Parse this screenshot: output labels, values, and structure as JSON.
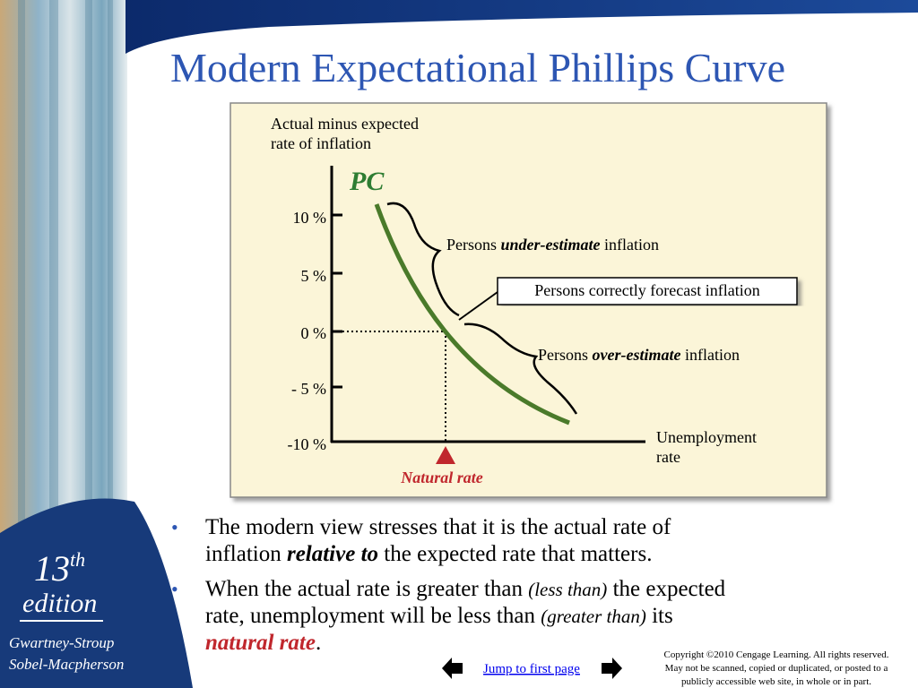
{
  "title": "Modern Expectational Phillips Curve",
  "chart": {
    "y_axis_label": [
      "Actual minus expected",
      "rate of inflation"
    ],
    "curve_label": "PC",
    "y_ticks": [
      "10 %",
      "5 %",
      "0 %",
      "- 5 %",
      "-10 %"
    ],
    "x_axis_label": [
      "Unemployment",
      "rate"
    ],
    "natural_rate": "Natural rate",
    "under_estimate": [
      "Persons ",
      "under-estimate",
      " inflation"
    ],
    "correct_forecast": "Persons correctly forecast inflation",
    "over_estimate": [
      "Persons ",
      "over-estimate",
      " inflation"
    ]
  },
  "bullets": [
    [
      [
        "The modern view stresses that it is the actual rate of"
      ],
      [
        "inflation ",
        "relative to",
        " the expected rate that matters."
      ]
    ],
    [
      [
        "When the actual rate is greater than ",
        "(less than)",
        " the expected"
      ],
      [
        "rate, unemployment will be less than ",
        "(greater than)",
        " its"
      ],
      [
        "natural rate",
        "."
      ]
    ]
  ],
  "sidebar": {
    "edition_number": "13",
    "edition_suffix": "th",
    "edition": "edition",
    "authors": [
      "Gwartney-Stroup",
      "Sobel-Macpherson"
    ]
  },
  "footer": {
    "link": "Jump to first page",
    "copyright": [
      "Copyright ©2010 Cengage Learning. All rights reserved.",
      "May not be scanned, copied or duplicated, or posted to a",
      "publicly accessible web site, in whole or in part."
    ]
  }
}
